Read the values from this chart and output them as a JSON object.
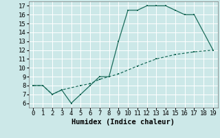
{
  "title": "",
  "xlabel": "Humidex (Indice chaleur)",
  "background_color": "#cce8e8",
  "line_color": "#1a6b5a",
  "grid_color": "#ffffff",
  "xlim": [
    -0.5,
    19.5
  ],
  "ylim": [
    5.5,
    17.5
  ],
  "xticks": [
    0,
    1,
    2,
    3,
    4,
    5,
    6,
    7,
    8,
    9,
    10,
    11,
    12,
    13,
    14,
    15,
    16,
    17,
    18,
    19
  ],
  "yticks": [
    6,
    7,
    8,
    9,
    10,
    11,
    12,
    13,
    14,
    15,
    16,
    17
  ],
  "line1_x": [
    0,
    1,
    2,
    3,
    4,
    5,
    6,
    7,
    8,
    9,
    10,
    11,
    12,
    13,
    14,
    15,
    16,
    17,
    19
  ],
  "line1_y": [
    8,
    8,
    7,
    7.5,
    6,
    7,
    8,
    9,
    9,
    13,
    16.5,
    16.5,
    17,
    17,
    17,
    16.5,
    16,
    16,
    12
  ],
  "line2_x": [
    0,
    1,
    2,
    3,
    5,
    6,
    7,
    9,
    11,
    13,
    15,
    17,
    19
  ],
  "line2_y": [
    8,
    8,
    7,
    7.5,
    8,
    8.2,
    8.7,
    9.3,
    10.2,
    11,
    11.5,
    11.8,
    12
  ],
  "font_family": "monospace",
  "fontsize_ticks": 6.5,
  "fontsize_label": 7.5
}
